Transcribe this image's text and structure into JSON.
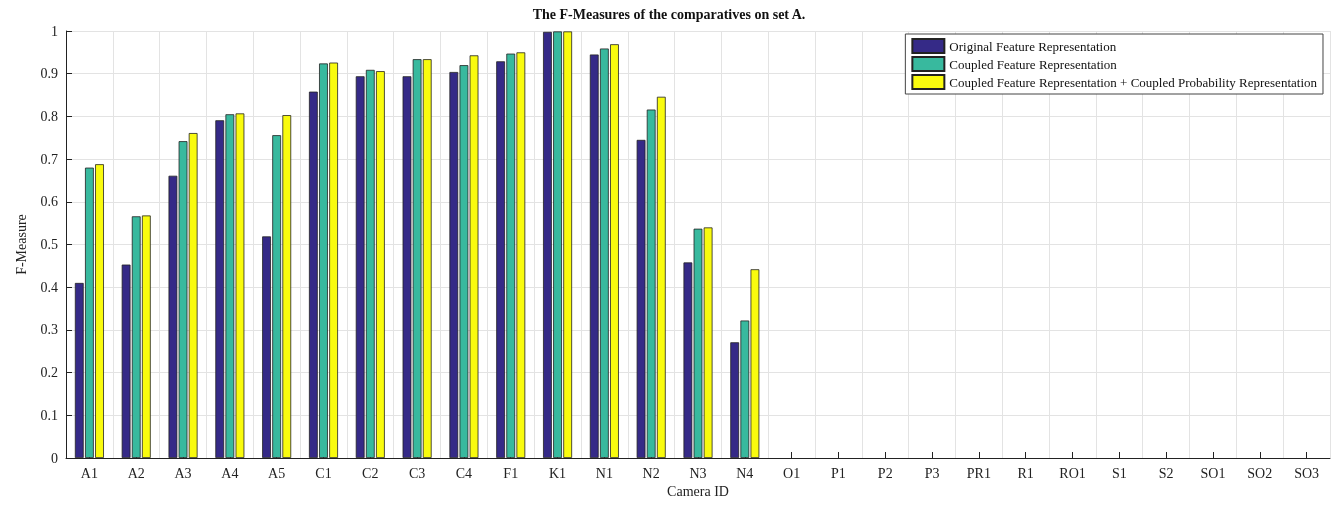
{
  "chart_data": {
    "type": "bar",
    "title": "The F-Measures of the comparatives on set A.",
    "xlabel": "Camera ID",
    "ylabel": "F-Measure",
    "categories": [
      "A1",
      "A2",
      "A3",
      "A4",
      "A5",
      "C1",
      "C2",
      "C3",
      "C4",
      "F1",
      "K1",
      "N1",
      "N2",
      "N3",
      "N4",
      "O1",
      "P1",
      "P2",
      "P3",
      "PR1",
      "R1",
      "RO1",
      "S1",
      "S2",
      "SO1",
      "SO2",
      "SO3"
    ],
    "series": [
      {
        "name": "Original Feature Representation",
        "color": "#352a87",
        "values": [
          0.41,
          0.453,
          0.661,
          0.791,
          0.519,
          0.858,
          0.894,
          0.894,
          0.904,
          0.929,
          0.998,
          0.945,
          0.745,
          0.458,
          0.271,
          0,
          0,
          0,
          0,
          0,
          0,
          0,
          0,
          0,
          0,
          0,
          0
        ]
      },
      {
        "name": "Coupled Feature Representation",
        "color": "#38b99e",
        "values": [
          0.68,
          0.566,
          0.742,
          0.805,
          0.756,
          0.924,
          0.909,
          0.934,
          0.92,
          0.947,
          0.999,
          0.959,
          0.816,
          0.537,
          0.322,
          0,
          0,
          0,
          0,
          0,
          0,
          0,
          0,
          0,
          0,
          0,
          0
        ]
      },
      {
        "name": "Coupled Feature Representation + Coupled Probability Representation",
        "color": "#f9fb0e",
        "values": [
          0.688,
          0.568,
          0.761,
          0.807,
          0.803,
          0.926,
          0.906,
          0.934,
          0.943,
          0.95,
          0.999,
          0.969,
          0.846,
          0.54,
          0.442,
          0,
          0,
          0,
          0,
          0,
          0,
          0,
          0,
          0,
          0,
          0,
          0
        ]
      }
    ],
    "ylim": [
      0,
      1
    ],
    "yticks": [
      0,
      0.1,
      0.2,
      0.3,
      0.4,
      0.5,
      0.6,
      0.7,
      0.8,
      0.9,
      1
    ],
    "grid": true,
    "legend": "top right"
  }
}
